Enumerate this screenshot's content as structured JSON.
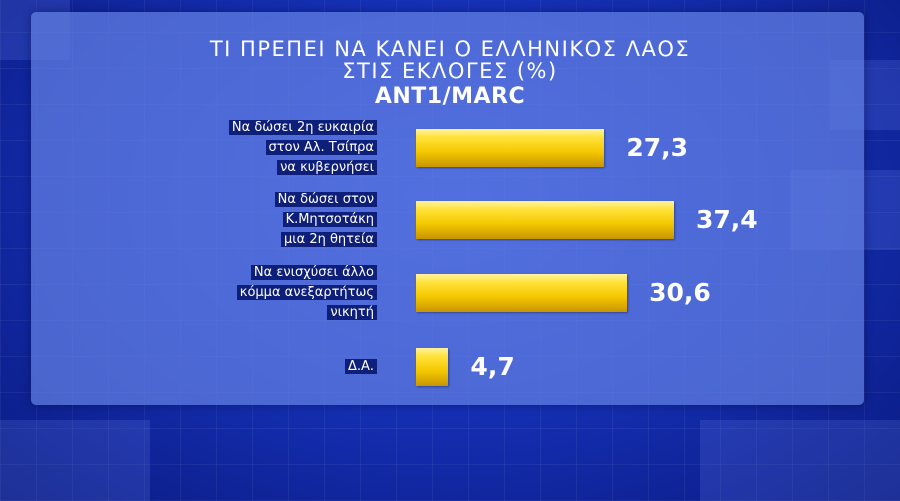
{
  "chart_data": {
    "type": "bar",
    "orientation": "horizontal",
    "title_lines": [
      "ΤΙ ΠΡΕΠΕΙ ΝΑ ΚΑΝΕΙ Ο ΕΛΛΗΝΙΚΟΣ ΛΑΟΣ",
      "ΣΤΙΣ ΕΚΛΟΓΕΣ (%)"
    ],
    "subtitle": "ANT1/MARC",
    "categories": [
      [
        "Να δώσει 2η ευκαιρία",
        "στον Αλ. Τσίπρα",
        "να κυβερνήσει"
      ],
      [
        "Να δώσει στον",
        "Κ.Μητσοτάκη",
        "μια 2η θητεία"
      ],
      [
        "Να ενισχύσει άλλο",
        "κόμμα ανεξαρτήτως",
        "νικητή"
      ],
      [
        "Δ.Α."
      ]
    ],
    "values": [
      27.3,
      37.4,
      30.6,
      4.7
    ],
    "value_labels": [
      "27,3",
      "37,4",
      "30,6",
      "4,7"
    ],
    "xlim": [
      0,
      37.4
    ],
    "colors": {
      "bar": "#f5c800",
      "panel": "#6280e2",
      "background": "#1631b8"
    }
  }
}
